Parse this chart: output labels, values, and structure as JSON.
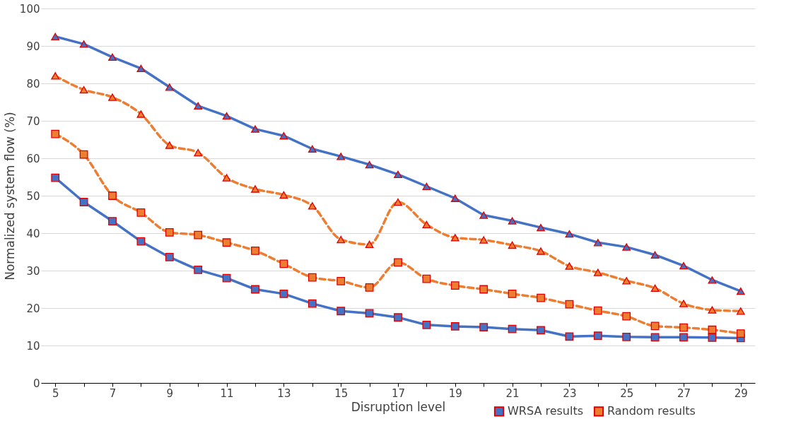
{
  "chart_data": {
    "type": "line",
    "xlabel": "Disruption level",
    "ylabel": "Normalized system flow (%)",
    "categories": [
      "5",
      null,
      "7",
      null,
      "9",
      null,
      "11",
      null,
      "13",
      null,
      "15",
      null,
      "17",
      null,
      "19",
      null,
      "21",
      null,
      "23",
      null,
      "25",
      null,
      "27",
      null,
      "29"
    ],
    "series": [
      {
        "color": "#4472c4",
        "marker": "triangle",
        "line_style": "solid",
        "values": [
          92.5,
          90.5,
          87,
          84,
          79,
          74,
          71.3,
          67.8,
          66,
          62.5,
          60.5,
          58.3,
          55.7,
          52.5,
          49.3,
          44.8,
          43.3,
          41.5,
          39.8,
          37.5,
          36.3,
          34.2,
          31.3,
          27.5,
          24.5
        ]
      },
      {
        "color": "#ed7d31",
        "marker": "triangle",
        "line_style": "dashed",
        "values": [
          82,
          78.3,
          76.3,
          71.8,
          63.5,
          61.5,
          54.8,
          51.8,
          50.2,
          47.3,
          38.3,
          37,
          48.3,
          42.3,
          38.8,
          38.2,
          36.8,
          35.2,
          31.2,
          29.5,
          27.3,
          25.3,
          21.2,
          19.5,
          19.2
        ]
      },
      {
        "name": "WRSA results",
        "color": "#4472c4",
        "marker": "square",
        "line_style": "solid",
        "values": [
          54.8,
          48.3,
          43.2,
          37.8,
          33.6,
          30.2,
          28,
          25,
          23.8,
          21.2,
          19.2,
          18.6,
          17.5,
          15.5,
          15.1,
          14.9,
          14.4,
          14.1,
          12.4,
          12.6,
          12.3,
          12.2,
          12.2,
          12.1,
          12
        ]
      },
      {
        "name": "Random results",
        "color": "#ed7d31",
        "marker": "square",
        "line_style": "dashed",
        "values": [
          66.5,
          61,
          50,
          45.5,
          40.2,
          39.5,
          37.5,
          35.3,
          31.8,
          28.2,
          27.2,
          25.5,
          32.2,
          27.8,
          26,
          25,
          23.8,
          22.7,
          21,
          19.3,
          17.8,
          15.2,
          14.8,
          14.2,
          13.2
        ]
      }
    ],
    "ylim": [
      0,
      100
    ],
    "yticks": [
      0,
      10,
      20,
      30,
      40,
      50,
      60,
      70,
      80,
      90,
      100
    ],
    "grid": "y",
    "legend": "bottom right"
  }
}
